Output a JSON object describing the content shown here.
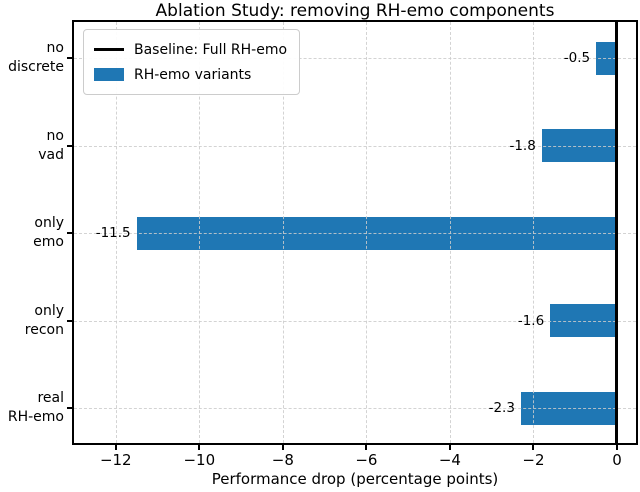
{
  "chart_data": {
    "type": "bar",
    "orientation": "horizontal",
    "title": "Ablation Study: removing RH-emo components",
    "xlabel": "Performance drop (percentage points)",
    "ylabel": "",
    "categories": [
      [
        "no",
        "discrete"
      ],
      [
        "no",
        "vad"
      ],
      [
        "only",
        "emo"
      ],
      [
        "only",
        "recon"
      ],
      [
        "real",
        "RH-emo"
      ]
    ],
    "values": [
      -0.5,
      -1.8,
      -11.5,
      -1.6,
      -2.3
    ],
    "bar_labels": [
      "-0.5",
      "-1.8",
      "-11.5",
      "-1.6",
      "-2.3"
    ],
    "xticks": [
      -12,
      -10,
      -8,
      -6,
      -4,
      -2,
      0
    ],
    "xtick_labels": [
      "−12",
      "−10",
      "−8",
      "−6",
      "−4",
      "−2",
      "0"
    ],
    "xlim": [
      -13.0,
      0.455
    ],
    "grid": true,
    "grid_style": "dashed",
    "baseline": {
      "value": 0,
      "label": "Baseline: Full RH-emo",
      "color": "#000000"
    },
    "legend": {
      "position": "upper left",
      "entries": [
        {
          "label": "Baseline: Full RH-emo",
          "swatch": "line",
          "color": "#000000"
        },
        {
          "label": "RH-emo variants",
          "swatch": "patch",
          "color": "#1f77b4"
        }
      ]
    },
    "colors": {
      "bar": "#1f77b4",
      "grid": "#cccccc",
      "spine": "#000000",
      "text": "#000000",
      "background": "#ffffff"
    }
  }
}
